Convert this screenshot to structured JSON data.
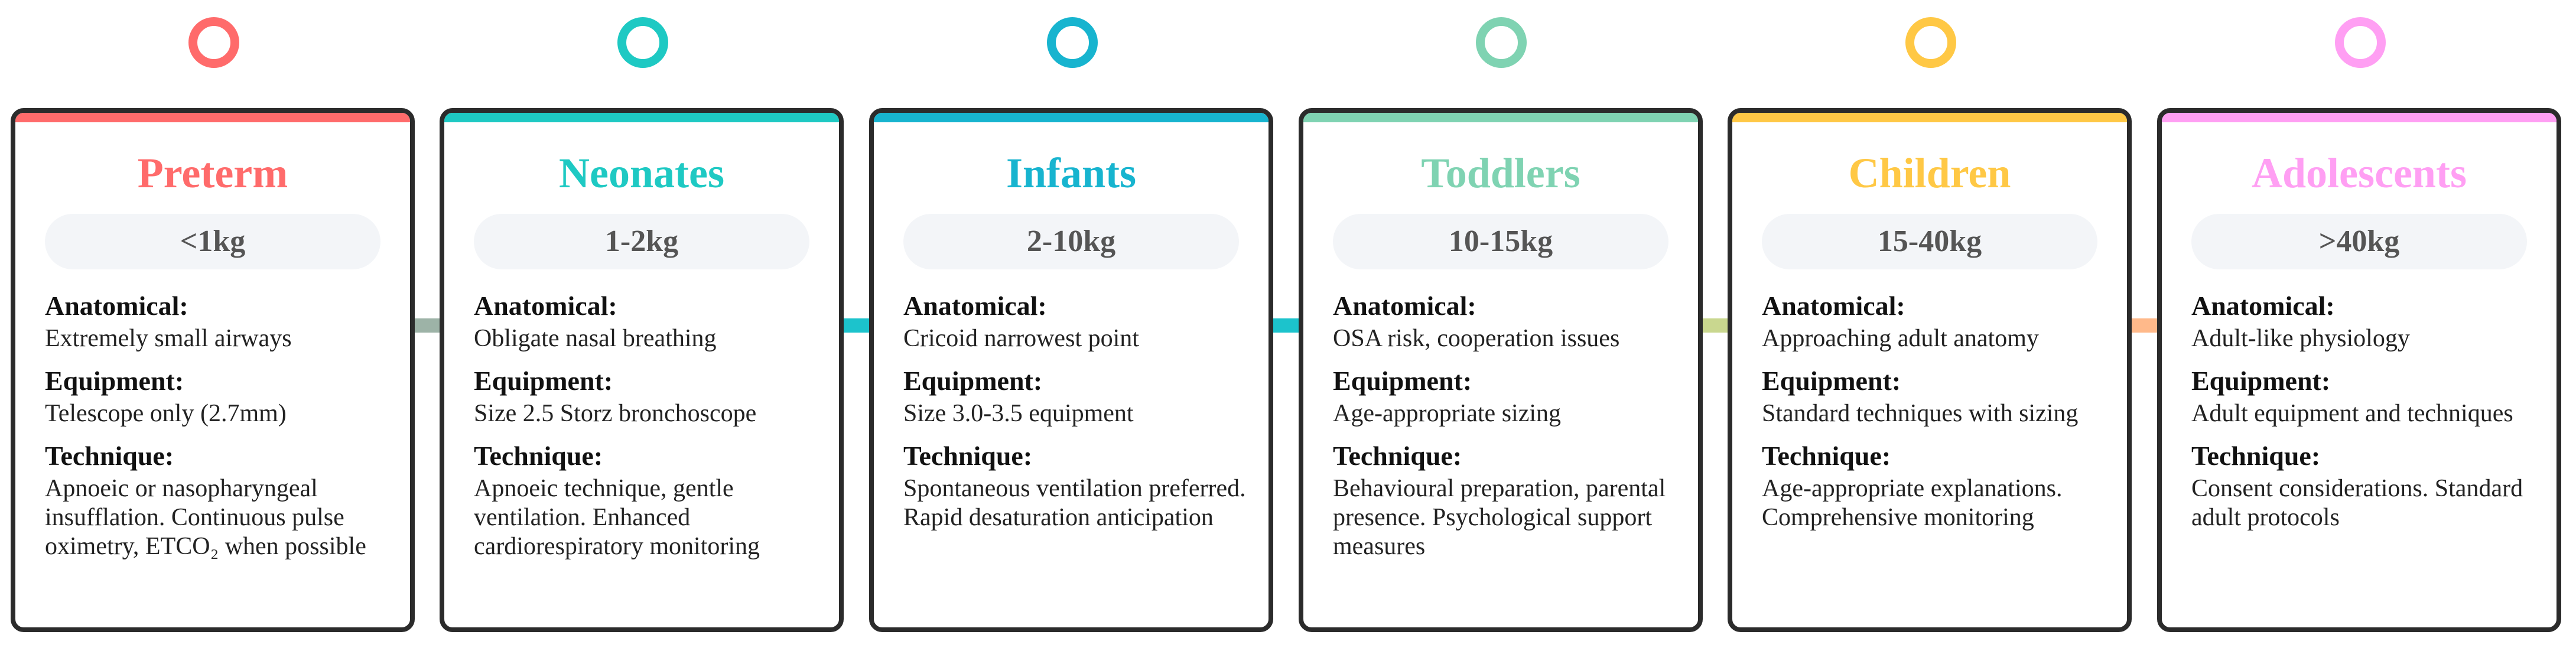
{
  "stages": [
    {
      "name": "Preterm",
      "weight": "<1kg",
      "color": "#ff6b6b",
      "anatomical_label": "Anatomical:",
      "anatomical": "Extremely small airways",
      "equipment_label": "Equipment:",
      "equipment": "Telescope only (2.7mm)",
      "technique_label": "Technique:",
      "technique": "Apnoeic or nasopharyngeal insufflation. Continuous pulse oximetry, ETCO₂ when possible"
    },
    {
      "name": "Neonates",
      "weight": "1-2kg",
      "color": "#1ec9c3",
      "anatomical_label": "Anatomical:",
      "anatomical": "Obligate nasal breathing",
      "equipment_label": "Equipment:",
      "equipment": "Size 2.5 Storz bronchoscope",
      "technique_label": "Technique:",
      "technique": "Apnoeic technique, gentle ventilation. Enhanced cardiorespiratory monitoring"
    },
    {
      "name": "Infants",
      "weight": "2-10kg",
      "color": "#17b4cf",
      "anatomical_label": "Anatomical:",
      "anatomical": "Cricoid narrowest point",
      "equipment_label": "Equipment:",
      "equipment": "Size 3.0-3.5 equipment",
      "technique_label": "Technique:",
      "technique": "Spontaneous ventilation preferred. Rapid desaturation anticipation"
    },
    {
      "name": "Toddlers",
      "weight": "10-15kg",
      "color": "#7fd3b2",
      "anatomical_label": "Anatomical:",
      "anatomical": "OSA risk, cooperation issues",
      "equipment_label": "Equipment:",
      "equipment": "Age-appropriate sizing",
      "technique_label": "Technique:",
      "technique": "Behavioural preparation, parental presence. Psychological support measures"
    },
    {
      "name": "Children",
      "weight": "15-40kg",
      "color": "#ffc845",
      "anatomical_label": "Anatomical:",
      "anatomical": "Approaching adult anatomy",
      "equipment_label": "Equipment:",
      "equipment": "Standard techniques with sizing",
      "technique_label": "Technique:",
      "technique": "Age-appropriate explanations. Comprehensive monitoring"
    },
    {
      "name": "Adolescents",
      "weight": ">40kg",
      "color": "#ff9ff3",
      "anatomical_label": "Anatomical:",
      "anatomical": "Adult-like physiology",
      "equipment_label": "Equipment:",
      "equipment": "Adult equipment and techniques",
      "technique_label": "Technique:",
      "technique": "Consent considerations. Standard adult protocols"
    }
  ],
  "connectors": [
    {
      "color": "#9db3a7"
    },
    {
      "color": "#1cc3cc"
    },
    {
      "color": "#1cc3cc"
    },
    {
      "color": "#c9d78f"
    },
    {
      "color": "#ffb98a"
    }
  ]
}
